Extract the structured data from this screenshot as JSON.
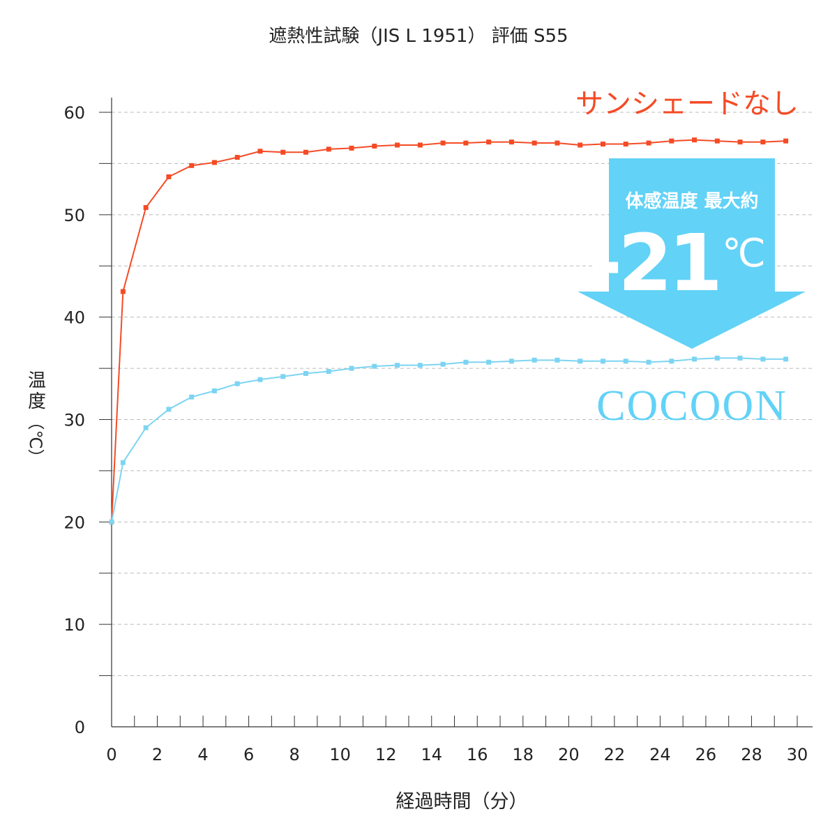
{
  "chart_data": {
    "type": "line",
    "title": "遮熱性試験（JIS L 1951） 評価 S55",
    "xlabel": "経過時間（分）",
    "ylabel": [
      "温",
      "度",
      "（℃）"
    ],
    "xlim": [
      0,
      30
    ],
    "ylim": [
      0,
      60
    ],
    "xticks": [
      0,
      2,
      4,
      6,
      8,
      10,
      12,
      14,
      16,
      18,
      20,
      22,
      24,
      26,
      28,
      30
    ],
    "yticks": [
      0,
      10,
      20,
      30,
      40,
      50,
      60
    ],
    "grid": "horizontal dashed every 5",
    "x": [
      0,
      0.5,
      1.5,
      2.5,
      3.5,
      4.5,
      5.5,
      6.5,
      7.5,
      8.5,
      9.5,
      10.5,
      11.5,
      12.5,
      13.5,
      14.5,
      15.5,
      16.5,
      17.5,
      18.5,
      19.5,
      20.5,
      21.5,
      22.5,
      23.5,
      24.5,
      25.5,
      26.5,
      27.5,
      28.5,
      29.5
    ],
    "series": [
      {
        "name": "サンシェードなし",
        "color": "#f44b25",
        "values": [
          20,
          42.5,
          50.7,
          53.7,
          54.8,
          55.1,
          55.6,
          56.2,
          56.1,
          56.1,
          56.4,
          56.5,
          56.7,
          56.8,
          56.8,
          57.0,
          57.0,
          57.1,
          57.1,
          57.0,
          57.0,
          56.8,
          56.9,
          56.9,
          57.0,
          57.2,
          57.3,
          57.2,
          57.1,
          57.1,
          57.2
        ]
      },
      {
        "name": "COCOON",
        "color": "#7dd4f2",
        "values": [
          20,
          25.8,
          29.2,
          31.0,
          32.2,
          32.8,
          33.5,
          33.9,
          34.2,
          34.5,
          34.7,
          35.0,
          35.2,
          35.3,
          35.3,
          35.4,
          35.6,
          35.6,
          35.7,
          35.8,
          35.8,
          35.7,
          35.7,
          35.7,
          35.6,
          35.7,
          35.9,
          36.0,
          36.0,
          35.9,
          35.9
        ]
      }
    ],
    "annotation": {
      "caption": "体感温度 最大約",
      "value": "-21",
      "unit": "℃",
      "color": "#62d2f7",
      "icon": "down-arrow"
    }
  }
}
